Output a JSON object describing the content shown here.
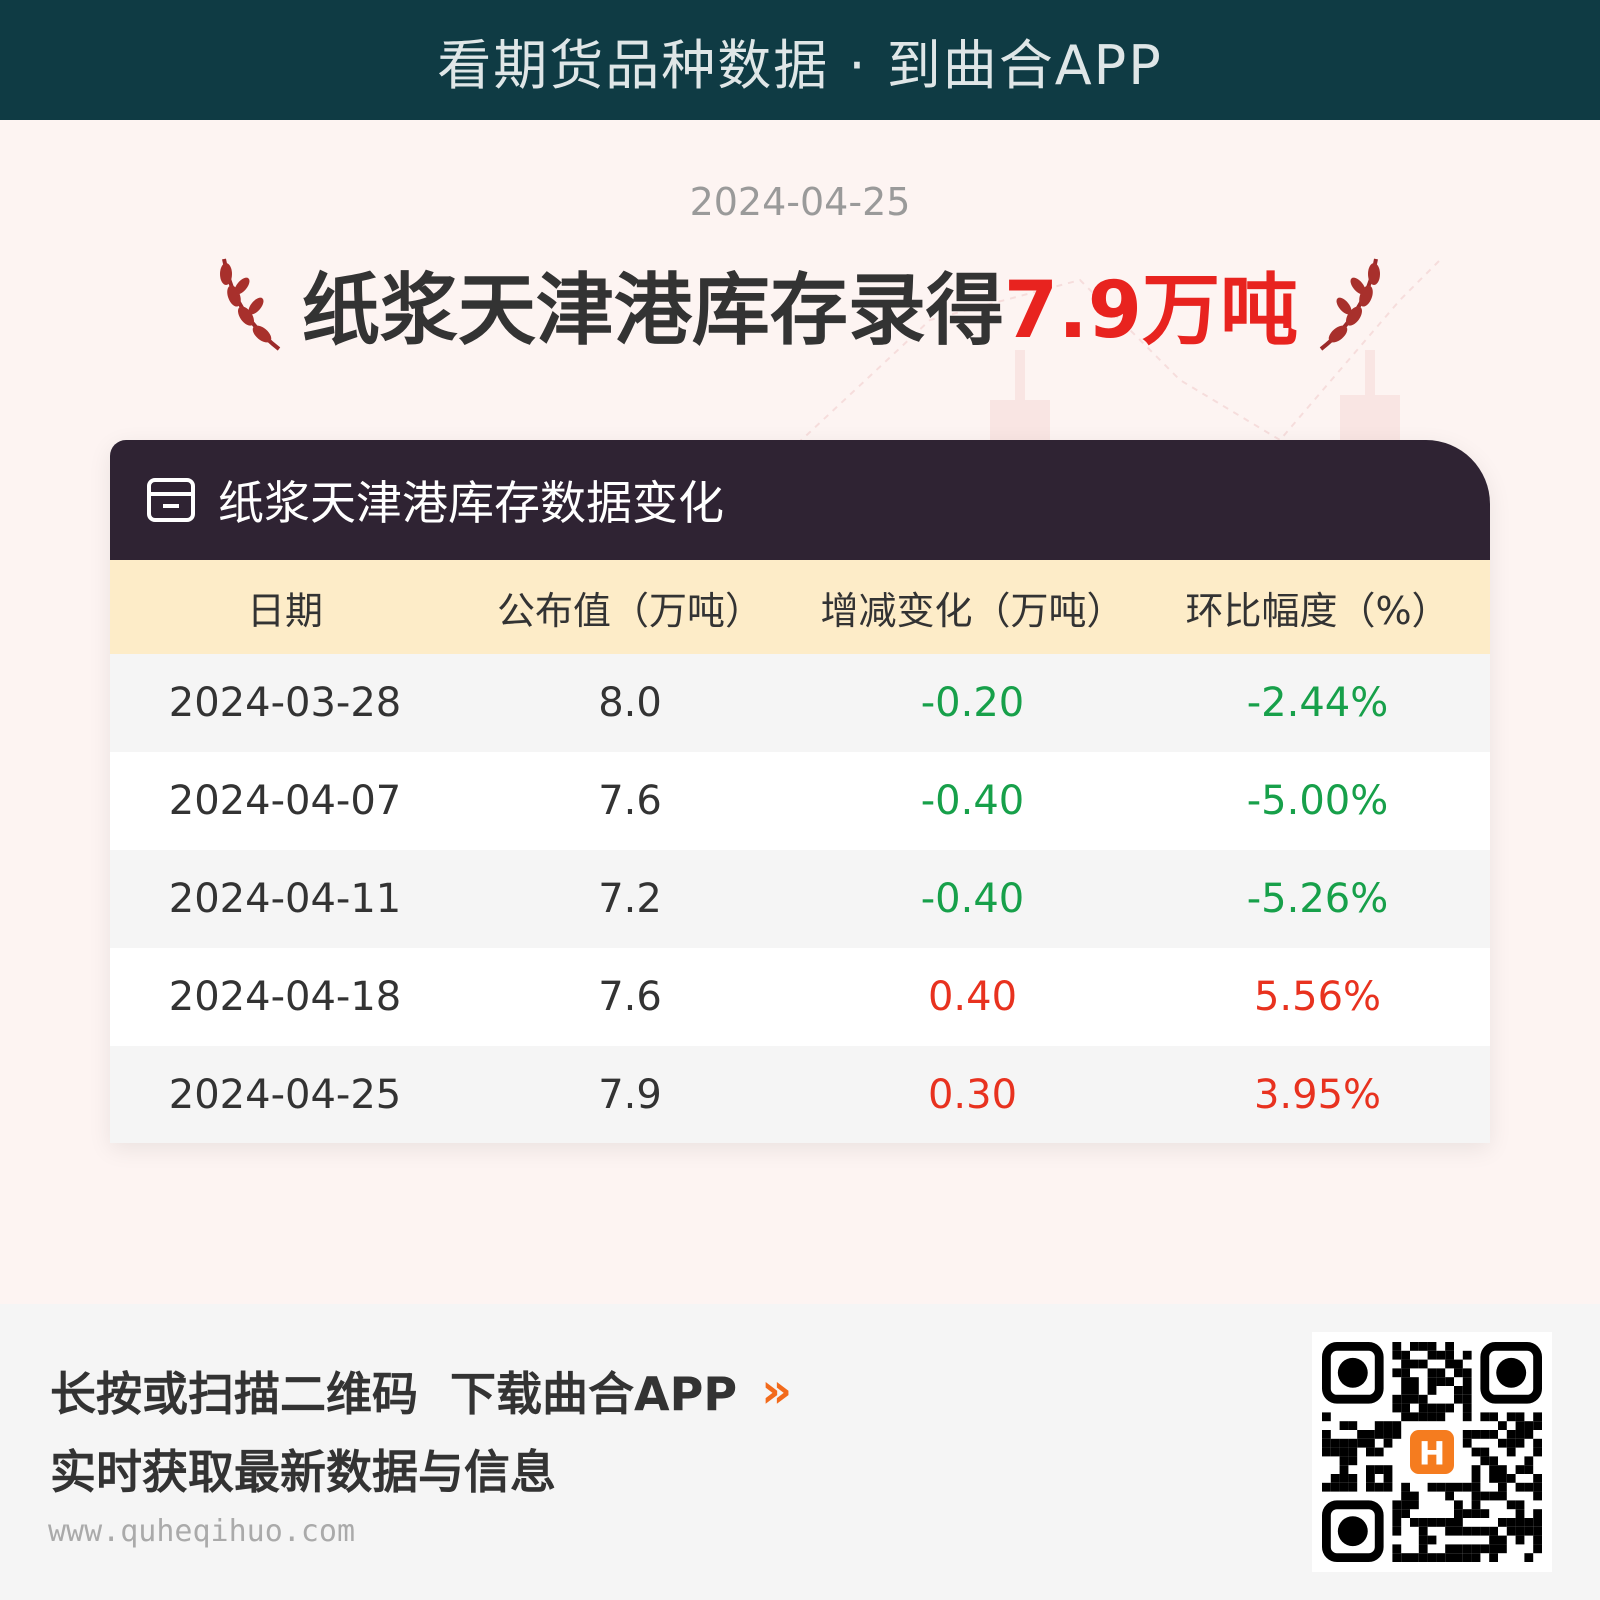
{
  "banner": {
    "text": "看期货品种数据 · 到曲合APP"
  },
  "report": {
    "date": "2024-04-25",
    "title_prefix": "纸浆天津港库存录得",
    "title_value": "7.9万吨"
  },
  "card": {
    "title": "纸浆天津港库存数据变化",
    "icon": "archive-box-icon",
    "columns": [
      "日期",
      "公布值（万吨）",
      "增减变化（万吨）",
      "环比幅度（%）"
    ],
    "rows": [
      {
        "date": "2024-03-28",
        "value": "8.0",
        "change": "-0.20",
        "pct": "-2.44%",
        "trend": "down"
      },
      {
        "date": "2024-04-07",
        "value": "7.6",
        "change": "-0.40",
        "pct": "-5.00%",
        "trend": "down"
      },
      {
        "date": "2024-04-11",
        "value": "7.2",
        "change": "-0.40",
        "pct": "-5.26%",
        "trend": "down"
      },
      {
        "date": "2024-04-18",
        "value": "7.6",
        "change": "0.40",
        "pct": "5.56%",
        "trend": "up"
      },
      {
        "date": "2024-04-25",
        "value": "7.9",
        "change": "0.30",
        "pct": "3.95%",
        "trend": "up"
      }
    ]
  },
  "colors": {
    "up": "#e8321f",
    "down": "#17a04a",
    "accent": "#e8231f",
    "banner": "#0f3b44"
  },
  "footer": {
    "line1": "长按或扫描二维码  下载曲合APP",
    "line2": "实时获取最新数据与信息",
    "url": "www.quheqihuo.com",
    "arrow": "»",
    "qr_logo": "H"
  }
}
